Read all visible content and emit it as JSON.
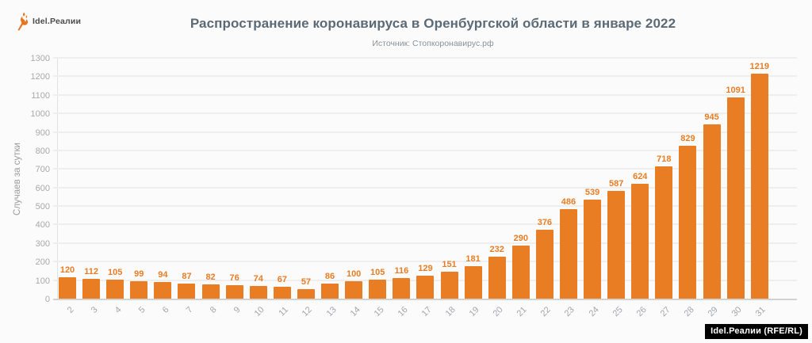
{
  "logo": {
    "text": "Idel.Реалии"
  },
  "header": {
    "title": "Распространение коронавируса в Оренбургской области в январе 2022",
    "source": "Источник: Стопкоронавирус.рф"
  },
  "watermark": {
    "text": "Idel.Реалии (RFE/RL)"
  },
  "colors": {
    "bar": "#e87d24",
    "value_label": "#e87d24",
    "title": "#5b6a76",
    "subtitle": "#8a9199",
    "axis_text": "#a9a9a9",
    "grid": "#efeeef",
    "background": "#fbfbfb",
    "watermark_bg": "#000000",
    "watermark_text": "#ffffff",
    "logo_icon": "#e8731f"
  },
  "chart_data": {
    "type": "bar",
    "title": "Распространение коронавируса в Оренбургской области в январе 2022",
    "subtitle": "Источник: Стопкоронавирус.рф",
    "categories": [
      "2",
      "3",
      "4",
      "5",
      "6",
      "7",
      "8",
      "9",
      "10",
      "11",
      "12",
      "13",
      "14",
      "15",
      "16",
      "17",
      "18",
      "19",
      "20",
      "21",
      "22",
      "23",
      "24",
      "25",
      "26",
      "27",
      "28",
      "29",
      "30",
      "31"
    ],
    "values": [
      120,
      112,
      105,
      99,
      94,
      87,
      82,
      76,
      74,
      67,
      57,
      86,
      100,
      105,
      116,
      129,
      151,
      181,
      232,
      290,
      376,
      486,
      539,
      587,
      624,
      718,
      829,
      945,
      1091,
      1219
    ],
    "xlabel": "",
    "ylabel": "Случаев за сутки",
    "ylim": [
      0,
      1300
    ],
    "ytick_step": 100,
    "grid": true,
    "legend": false,
    "value_labels": true
  }
}
